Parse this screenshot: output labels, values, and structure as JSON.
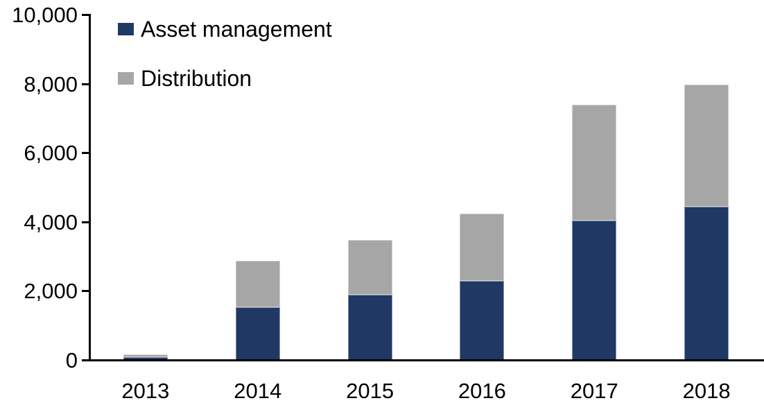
{
  "chart_data": {
    "type": "bar",
    "stacked": true,
    "title": "",
    "xlabel": "",
    "ylabel": "",
    "categories": [
      "2013",
      "2014",
      "2015",
      "2016",
      "2017",
      "2018"
    ],
    "series": [
      {
        "name": "Asset management",
        "color": "#1F3864",
        "values": [
          100,
          1550,
          1900,
          2300,
          4050,
          4450
        ]
      },
      {
        "name": "Distribution",
        "color": "#A6A6A6",
        "values": [
          90,
          1350,
          1600,
          1950,
          3350,
          3550
        ]
      }
    ],
    "totals": [
      190,
      2900,
      3500,
      4250,
      7400,
      8000
    ],
    "ylim": [
      0,
      10000
    ],
    "yticks": [
      0,
      2000,
      4000,
      6000,
      8000,
      10000
    ],
    "ytick_labels": [
      "0",
      "2,000",
      "4,000",
      "6,000",
      "8,000",
      "10,000"
    ],
    "grid": false,
    "legend_position": "top-left",
    "axis_color": "#000000",
    "background_color": "#FFFFFF"
  }
}
